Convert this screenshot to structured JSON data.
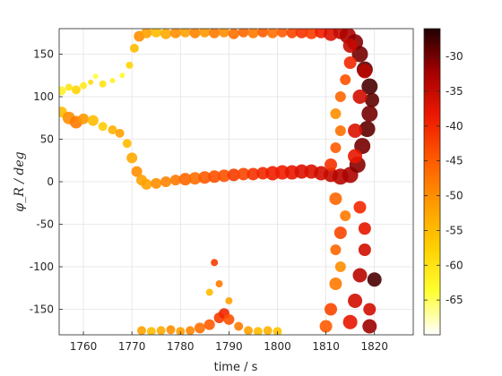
{
  "chart_data": {
    "type": "scatter",
    "xlabel": "time / s",
    "ylabel": "φ_R / deg",
    "xlim": [
      1755,
      1828
    ],
    "ylim": [
      -180,
      180
    ],
    "x_ticks": [
      1760,
      1770,
      1780,
      1790,
      1800,
      1810,
      1820
    ],
    "y_ticks": [
      -150,
      -100,
      -50,
      0,
      50,
      100,
      150
    ],
    "grid": true,
    "colormap": "hot (reversed): white → yellow → orange → red → black",
    "color_scale": {
      "label_ticks": [
        -65,
        -60,
        -55,
        -50,
        -45,
        -40,
        -35,
        -30
      ],
      "range": [
        -70,
        -26
      ],
      "colors": [
        "#ffffff",
        "#ffff30",
        "#ffd000",
        "#ff9a00",
        "#ff5a00",
        "#ee1800",
        "#a50000",
        "#200000"
      ]
    },
    "series": [
      {
        "description": "upper track",
        "points": [
          [
            1755.5,
            107,
            -62,
            5
          ],
          [
            1757,
            111,
            -60,
            4
          ],
          [
            1758.5,
            108,
            -58,
            5
          ],
          [
            1760,
            113,
            -61,
            4
          ],
          [
            1761.5,
            117,
            -59,
            3
          ],
          [
            1762.5,
            124,
            -64,
            3
          ],
          [
            1764,
            115,
            -60,
            4
          ],
          [
            1766,
            119,
            -62,
            3
          ],
          [
            1768,
            125,
            -63,
            3
          ],
          [
            1769.5,
            137,
            -58,
            4
          ],
          [
            1770.5,
            157,
            -55,
            5
          ],
          [
            1771.5,
            171,
            -50,
            6
          ],
          [
            1773,
            175,
            -52,
            6
          ],
          [
            1775,
            176,
            -55,
            6
          ],
          [
            1777,
            174,
            -53,
            6
          ],
          [
            1779,
            175,
            -50,
            6
          ],
          [
            1781,
            176,
            -52,
            6
          ],
          [
            1783,
            175,
            -49,
            6
          ],
          [
            1785,
            176,
            -51,
            6
          ],
          [
            1787,
            175,
            -48,
            6
          ],
          [
            1789,
            176,
            -50,
            6
          ],
          [
            1791,
            174,
            -47,
            6
          ],
          [
            1793,
            176,
            -46,
            6
          ],
          [
            1795,
            175,
            -48,
            6
          ],
          [
            1797,
            176,
            -45,
            6
          ],
          [
            1799,
            175,
            -47,
            6
          ],
          [
            1801,
            176,
            -45,
            6
          ],
          [
            1803,
            175,
            -43,
            6
          ],
          [
            1805,
            176,
            -41,
            7
          ],
          [
            1807,
            175,
            -42,
            7
          ],
          [
            1809,
            176,
            -39,
            7
          ],
          [
            1811,
            174,
            -37,
            8
          ],
          [
            1813,
            176,
            -35,
            8
          ],
          [
            1814.5,
            172,
            -33,
            9
          ],
          [
            1816,
            164,
            -31,
            9
          ],
          [
            1817,
            150,
            -30,
            9
          ],
          [
            1818,
            132,
            -29,
            9
          ],
          [
            1819,
            112,
            -28,
            9
          ],
          [
            1819.5,
            96,
            -29,
            8
          ]
        ]
      },
      {
        "description": "middle track",
        "points": [
          [
            1755.5,
            82,
            -55,
            6
          ],
          [
            1757,
            75,
            -50,
            7
          ],
          [
            1758.5,
            70,
            -48,
            7
          ],
          [
            1760,
            74,
            -51,
            6
          ],
          [
            1762,
            72,
            -55,
            6
          ],
          [
            1764,
            65,
            -57,
            5
          ],
          [
            1766,
            61,
            -54,
            5
          ],
          [
            1767.5,
            57,
            -52,
            5
          ],
          [
            1769,
            45,
            -55,
            5
          ],
          [
            1770,
            28,
            -53,
            6
          ],
          [
            1771,
            12,
            -50,
            6
          ],
          [
            1772,
            2,
            -52,
            6
          ],
          [
            1773,
            -3,
            -52,
            6
          ],
          [
            1775,
            -2,
            -50,
            6
          ],
          [
            1777,
            0,
            -49,
            6
          ],
          [
            1779,
            2,
            -48,
            6
          ],
          [
            1781,
            3,
            -46,
            7
          ],
          [
            1783,
            4,
            -47,
            7
          ],
          [
            1785,
            5,
            -45,
            7
          ],
          [
            1787,
            6,
            -44,
            7
          ],
          [
            1789,
            7,
            -44,
            7
          ],
          [
            1791,
            8,
            -42,
            7
          ],
          [
            1793,
            9,
            -43,
            7
          ],
          [
            1795,
            9,
            -41,
            7
          ],
          [
            1797,
            10,
            -40,
            7
          ],
          [
            1799,
            10,
            -39,
            8
          ],
          [
            1801,
            11,
            -39,
            8
          ],
          [
            1803,
            11,
            -38,
            8
          ],
          [
            1805,
            12,
            -37,
            8
          ],
          [
            1807,
            12,
            -37,
            8
          ],
          [
            1809,
            10,
            -36,
            8
          ],
          [
            1811,
            8,
            -35,
            8
          ],
          [
            1813,
            6,
            -34,
            9
          ],
          [
            1815,
            8,
            -33,
            9
          ],
          [
            1816.5,
            20,
            -31,
            9
          ],
          [
            1817.5,
            42,
            -30,
            9
          ],
          [
            1818.5,
            62,
            -29,
            9
          ],
          [
            1819,
            80,
            -30,
            9
          ]
        ]
      },
      {
        "description": "lower track",
        "points": [
          [
            1772,
            -175,
            -52,
            5
          ],
          [
            1774,
            -176,
            -55,
            5
          ],
          [
            1776,
            -175,
            -53,
            5
          ],
          [
            1778,
            -174,
            -50,
            5
          ],
          [
            1780,
            -176,
            -52,
            5
          ],
          [
            1782,
            -175,
            -49,
            5
          ],
          [
            1784,
            -172,
            -47,
            6
          ],
          [
            1786,
            -168,
            -45,
            6
          ],
          [
            1788,
            -160,
            -42,
            6
          ],
          [
            1789,
            -155,
            -40,
            6
          ],
          [
            1790,
            -162,
            -44,
            6
          ],
          [
            1792,
            -170,
            -48,
            5
          ],
          [
            1794,
            -175,
            -52,
            5
          ],
          [
            1796,
            -176,
            -55,
            5
          ],
          [
            1798,
            -175,
            -54,
            5
          ],
          [
            1800,
            -176,
            -56,
            5
          ],
          [
            1787,
            -95,
            -42,
            4
          ],
          [
            1788,
            -120,
            -48,
            4
          ],
          [
            1786,
            -130,
            -55,
            4
          ],
          [
            1790,
            -140,
            -52,
            4
          ]
        ]
      },
      {
        "description": "dense band 1808–1820",
        "points": [
          [
            1810,
            -170,
            -45,
            7
          ],
          [
            1811,
            -150,
            -43,
            7
          ],
          [
            1812,
            -120,
            -48,
            7
          ],
          [
            1813,
            -100,
            -50,
            6
          ],
          [
            1812,
            -80,
            -46,
            6
          ],
          [
            1813,
            -60,
            -43,
            7
          ],
          [
            1814,
            -40,
            -48,
            6
          ],
          [
            1812,
            -20,
            -46,
            7
          ],
          [
            1815,
            -165,
            -38,
            8
          ],
          [
            1816,
            -140,
            -36,
            8
          ],
          [
            1817,
            -110,
            -34,
            8
          ],
          [
            1818,
            -80,
            -36,
            7
          ],
          [
            1818,
            -55,
            -38,
            7
          ],
          [
            1817,
            -30,
            -40,
            7
          ],
          [
            1819,
            -150,
            -36,
            7
          ],
          [
            1820,
            -115,
            -28,
            8
          ],
          [
            1819,
            -170,
            -32,
            8
          ],
          [
            1811,
            20,
            -41,
            7
          ],
          [
            1812,
            40,
            -45,
            6
          ],
          [
            1813,
            60,
            -47,
            6
          ],
          [
            1812,
            80,
            -50,
            6
          ],
          [
            1813,
            100,
            -46,
            6
          ],
          [
            1814,
            120,
            -44,
            6
          ],
          [
            1815,
            140,
            -40,
            7
          ],
          [
            1816,
            30,
            -38,
            8
          ],
          [
            1817,
            100,
            -36,
            8
          ],
          [
            1818,
            130,
            -34,
            8
          ],
          [
            1816,
            60,
            -37,
            8
          ],
          [
            1815,
            160,
            -35,
            8
          ]
        ]
      }
    ]
  }
}
